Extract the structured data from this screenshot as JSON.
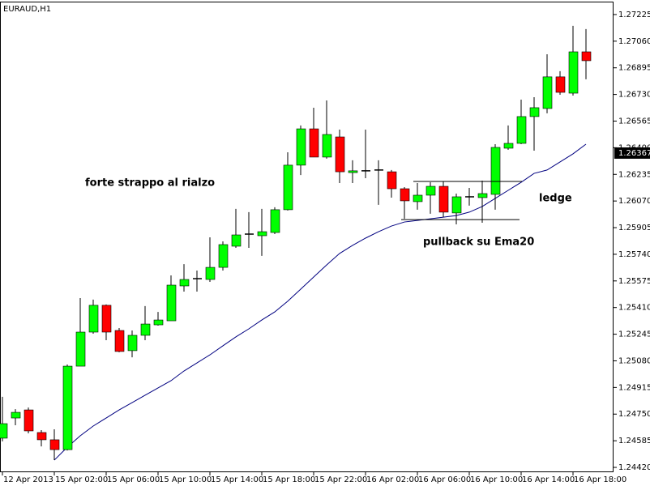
{
  "chart_data": {
    "type": "candlestick",
    "title": "EURAUD,H1",
    "categories": [
      "12 Apr 2013",
      null,
      null,
      null,
      "15 Apr 02:00",
      null,
      null,
      null,
      "15 Apr 06:00",
      null,
      null,
      null,
      "15 Apr 10:00",
      null,
      null,
      null,
      "15 Apr 14:00",
      null,
      null,
      null,
      "15 Apr 18:00",
      null,
      null,
      null,
      "15 Apr 22:00",
      null,
      null,
      null,
      "16 Apr 02:00",
      null,
      null,
      null,
      "16 Apr 06:00",
      null,
      null,
      null,
      "16 Apr 10:00",
      null,
      null,
      null,
      "16 Apr 14:00",
      null,
      null,
      null,
      "16 Apr 18:00",
      null
    ],
    "open": [
      1.24601,
      1.24726,
      1.24776,
      1.24636,
      1.24591,
      1.2453,
      1.25047,
      1.25258,
      1.25424,
      1.25268,
      1.25143,
      1.25238,
      1.25303,
      1.25328,
      1.25544,
      1.25589,
      1.25584,
      1.25659,
      1.2579,
      1.25865,
      1.25855,
      1.25875,
      1.26016,
      1.26292,
      1.26517,
      1.26342,
      1.26467,
      1.26246,
      1.26257,
      1.26262,
      1.26251,
      1.26146,
      1.26066,
      1.26106,
      1.26161,
      1.25996,
      1.26096,
      1.26091,
      1.26111,
      1.26397,
      1.26427,
      1.26593,
      1.26643,
      1.26839,
      1.26738,
      1.26994
    ],
    "high": [
      1.24857,
      1.24781,
      1.24791,
      1.24651,
      1.24656,
      1.25057,
      1.25469,
      1.25459,
      1.25429,
      1.25283,
      1.25268,
      1.25419,
      1.25383,
      1.25609,
      1.25679,
      1.25639,
      1.25845,
      1.2582,
      1.26021,
      1.26001,
      1.26021,
      1.26031,
      1.26372,
      1.26538,
      1.26648,
      1.26693,
      1.26512,
      1.26322,
      1.26512,
      1.26322,
      1.26262,
      1.26156,
      1.26181,
      1.26186,
      1.26191,
      1.26116,
      1.26151,
      1.26196,
      1.26422,
      1.26538,
      1.26698,
      1.26713,
      1.26979,
      1.26874,
      1.27155,
      1.27135
    ],
    "low": [
      1.24581,
      1.24681,
      1.24631,
      1.2455,
      1.24465,
      1.24525,
      1.25047,
      1.25248,
      1.25208,
      1.25133,
      1.25102,
      1.25208,
      1.25298,
      1.25328,
      1.25509,
      1.25509,
      1.25569,
      1.25639,
      1.2578,
      1.2578,
      1.2573,
      1.25865,
      1.26011,
      1.26231,
      1.26342,
      1.26332,
      1.26181,
      1.26181,
      1.26211,
      1.26046,
      1.26091,
      1.2596,
      1.26016,
      1.25991,
      1.2597,
      1.25925,
      1.26041,
      1.25935,
      1.26016,
      1.26387,
      1.26422,
      1.26382,
      1.26613,
      1.26728,
      1.26723,
      1.26824
    ],
    "close": [
      1.24691,
      1.24761,
      1.24646,
      1.24591,
      1.2453,
      1.25047,
      1.25258,
      1.25424,
      1.25258,
      1.25138,
      1.25238,
      1.25308,
      1.25333,
      1.25549,
      1.25584,
      1.25589,
      1.25659,
      1.258,
      1.2586,
      1.25865,
      1.2588,
      1.26016,
      1.26292,
      1.26517,
      1.26342,
      1.26482,
      1.26251,
      1.26257,
      1.26257,
      1.26262,
      1.26146,
      1.26071,
      1.26106,
      1.26161,
      1.26001,
      1.26096,
      1.26096,
      1.26116,
      1.26402,
      1.26427,
      1.26593,
      1.26648,
      1.26839,
      1.26743,
      1.26994,
      1.26939
    ],
    "up_color": "#00ff00",
    "down_color": "#ff0000",
    "doji_color": "#000000",
    "ema": {
      "color": "#000080",
      "values": [
        null,
        null,
        null,
        null,
        1.24465,
        1.24545,
        1.24616,
        1.24676,
        1.24726,
        1.24776,
        1.24821,
        1.24867,
        1.24912,
        1.24957,
        1.25017,
        1.25067,
        1.25117,
        1.25173,
        1.25228,
        1.25278,
        1.25333,
        1.25383,
        1.25449,
        1.25524,
        1.25599,
        1.25674,
        1.25745,
        1.25795,
        1.2584,
        1.2588,
        1.25915,
        1.2594,
        1.2595,
        1.2596,
        1.2597,
        1.2598,
        1.26001,
        1.26036,
        1.26086,
        1.26136,
        1.26186,
        1.26241,
        1.26262,
        1.26312,
        1.26362,
        1.26422
      ]
    },
    "ylim": [
      1.2439,
      1.27305
    ],
    "yticks": [
      {
        "value": 1.27225,
        "label": "1.27225"
      },
      {
        "value": 1.2706,
        "label": "1.27060"
      },
      {
        "value": 1.26895,
        "label": "1.26895"
      },
      {
        "value": 1.2673,
        "label": "1.26730"
      },
      {
        "value": 1.26565,
        "label": "1.26565"
      },
      {
        "value": 1.264,
        "label": "1.26400"
      },
      {
        "value": 1.26235,
        "label": "1.26235"
      },
      {
        "value": 1.2607,
        "label": "1.26070"
      },
      {
        "value": 1.25905,
        "label": "1.25905"
      },
      {
        "value": 1.2574,
        "label": "1.25740"
      },
      {
        "value": 1.25575,
        "label": "1.25575"
      },
      {
        "value": 1.2541,
        "label": "1.25410"
      },
      {
        "value": 1.25245,
        "label": "1.25245"
      },
      {
        "value": 1.2508,
        "label": "1.25080"
      },
      {
        "value": 1.24915,
        "label": "1.24915"
      },
      {
        "value": 1.2475,
        "label": "1.24750"
      },
      {
        "value": 1.24585,
        "label": "1.24585"
      },
      {
        "value": 1.2442,
        "label": "1.24420"
      }
    ],
    "last_price": 1.26367,
    "levels": [
      1.26191,
      1.25955
    ],
    "annotations": [
      "forte strappo al rialzo",
      "ledge",
      "pullback su Ema20"
    ]
  }
}
